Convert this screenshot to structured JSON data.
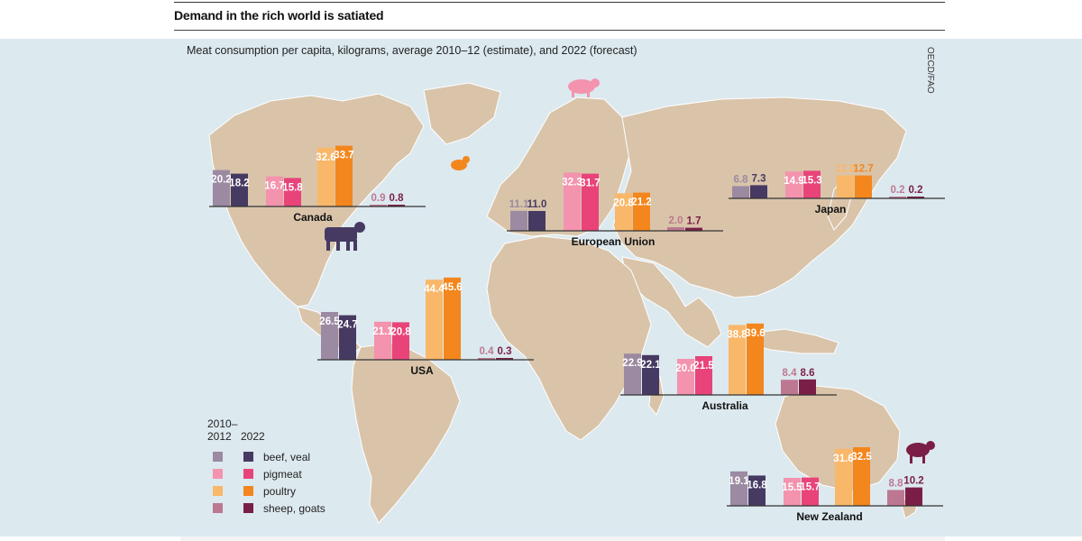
{
  "header": {
    "title": "Demand in the rich world is satiated",
    "subtitle": "Meat consumption per capita, kilograms, average 2010–12 (estimate), and 2022 (forecast)",
    "source": "OECD/FAO"
  },
  "legend": {
    "col1": "2010–\n2012",
    "col2": "2022",
    "items": [
      {
        "label": "beef, veal",
        "color_2010": "#9b8aa1",
        "color_2022": "#463a63"
      },
      {
        "label": "pigmeat",
        "color_2010": "#f393ae",
        "color_2022": "#e8447a"
      },
      {
        "label": "poultry",
        "color_2010": "#f9b769",
        "color_2022": "#f3861d"
      },
      {
        "label": "sheep, goats",
        "color_2010": "#bd7891",
        "color_2022": "#7a1e45"
      }
    ]
  },
  "colors": {
    "background": "#dce9ef",
    "land": "#d9c4aa",
    "border": "#ffffff",
    "axis": "#333333",
    "animal_icon_beef": "#463a63",
    "animal_icon_pig": "#f393ae",
    "animal_icon_poultry": "#f3861d",
    "animal_icon_sheep": "#7a1e45"
  },
  "chart_data": [
    {
      "type": "bar",
      "title": "Canada",
      "categories": [
        "beef, veal",
        "pigmeat",
        "poultry",
        "sheep, goats"
      ],
      "series": [
        {
          "name": "2010–2012",
          "values": [
            20.2,
            16.7,
            32.6,
            0.9
          ]
        },
        {
          "name": "2022",
          "values": [
            18.2,
            15.8,
            33.7,
            0.8
          ]
        }
      ]
    },
    {
      "type": "bar",
      "title": "USA",
      "categories": [
        "beef, veal",
        "pigmeat",
        "poultry",
        "sheep, goats"
      ],
      "series": [
        {
          "name": "2010–2012",
          "values": [
            26.5,
            21.1,
            44.4,
            0.4
          ]
        },
        {
          "name": "2022",
          "values": [
            24.7,
            20.8,
            45.6,
            0.3
          ]
        }
      ]
    },
    {
      "type": "bar",
      "title": "European Union",
      "categories": [
        "beef, veal",
        "pigmeat",
        "poultry",
        "sheep, goats"
      ],
      "series": [
        {
          "name": "2010–2012",
          "values": [
            11.1,
            32.3,
            20.8,
            2.0
          ]
        },
        {
          "name": "2022",
          "values": [
            11.0,
            31.7,
            21.2,
            1.7
          ]
        }
      ]
    },
    {
      "type": "bar",
      "title": "Japan",
      "categories": [
        "beef, veal",
        "pigmeat",
        "poultry",
        "sheep, goats"
      ],
      "series": [
        {
          "name": "2010–2012",
          "values": [
            6.8,
            14.9,
            12.8,
            0.2
          ]
        },
        {
          "name": "2022",
          "values": [
            7.3,
            15.3,
            12.7,
            0.2
          ]
        }
      ]
    },
    {
      "type": "bar",
      "title": "Australia",
      "categories": [
        "beef, veal",
        "pigmeat",
        "poultry",
        "sheep, goats"
      ],
      "series": [
        {
          "name": "2010–2012",
          "values": [
            22.9,
            20.0,
            38.8,
            8.4
          ]
        },
        {
          "name": "2022",
          "values": [
            22.1,
            21.5,
            39.6,
            8.6
          ]
        }
      ]
    },
    {
      "type": "bar",
      "title": "New Zealand",
      "categories": [
        "beef, veal",
        "pigmeat",
        "poultry",
        "sheep, goats"
      ],
      "series": [
        {
          "name": "2010–2012",
          "values": [
            19.1,
            15.5,
            31.6,
            8.8
          ]
        },
        {
          "name": "2022",
          "values": [
            16.8,
            15.7,
            32.5,
            10.2
          ]
        }
      ]
    }
  ]
}
